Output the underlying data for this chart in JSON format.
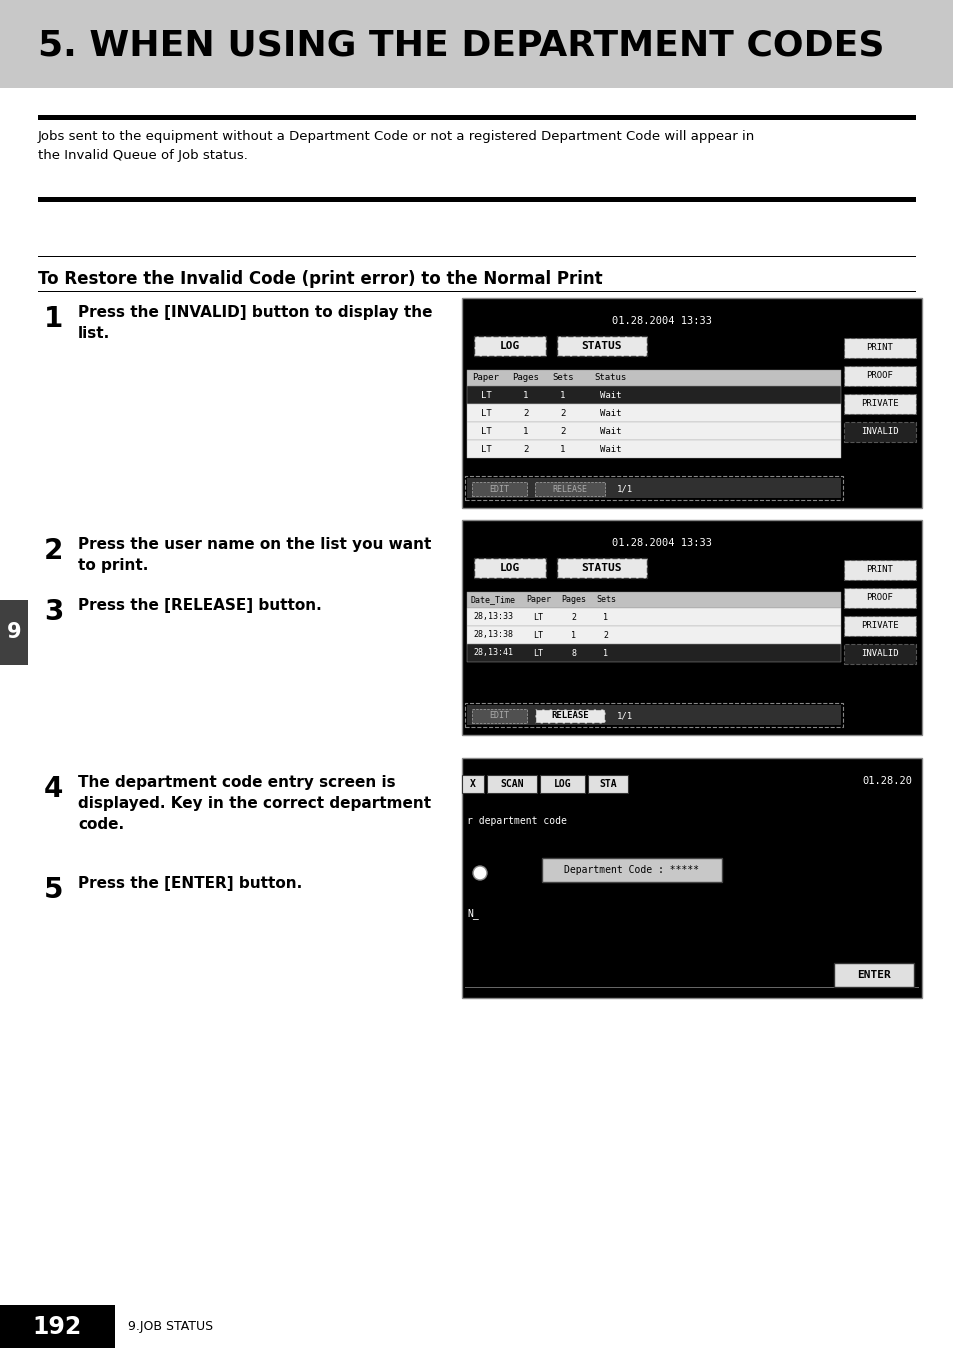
{
  "title": "5. WHEN USING THE DEPARTMENT CODES",
  "title_bg_color": "#c8c8c8",
  "title_font_size": 26,
  "page_bg": "#ffffff",
  "body_text": "Jobs sent to the equipment without a Department Code or not a registered Department Code will appear in\nthe Invalid Queue of Job status.",
  "section_title": "To Restore the Invalid Code (print error) to the Normal Print",
  "step1_num": "1",
  "step1_text": "Press the [INVALID] button to display the\nlist.",
  "step2_num": "2",
  "step2_text": "Press the user name on the list you want\nto print.",
  "step3_num": "3",
  "step3_text": "Press the [RELEASE] button.",
  "step4_num": "4",
  "step4_text": "The department code entry screen is\ndisplayed. Key in the correct department\ncode.",
  "step5_num": "5",
  "step5_text": "Press the [ENTER] button.",
  "footer_num": "192",
  "footer_text": "9.JOB STATUS",
  "sidebar_num": "9",
  "screen1_datetime": "01.28.2004 13:33",
  "screen2_datetime": "01.28.2004 13:33",
  "screen3_datetime": "01.28.20",
  "rows1": [
    [
      "LT",
      "1",
      "1",
      "Wait"
    ],
    [
      "LT",
      "2",
      "2",
      "Wait"
    ],
    [
      "LT",
      "1",
      "2",
      "Wait"
    ],
    [
      "LT",
      "2",
      "1",
      "Wait"
    ]
  ],
  "rows2": [
    [
      "28,13:33",
      "LT",
      "2",
      "1"
    ],
    [
      "28,13:38",
      "LT",
      "1",
      "2"
    ],
    [
      "28,13:41",
      "LT",
      "8",
      "1"
    ]
  ]
}
